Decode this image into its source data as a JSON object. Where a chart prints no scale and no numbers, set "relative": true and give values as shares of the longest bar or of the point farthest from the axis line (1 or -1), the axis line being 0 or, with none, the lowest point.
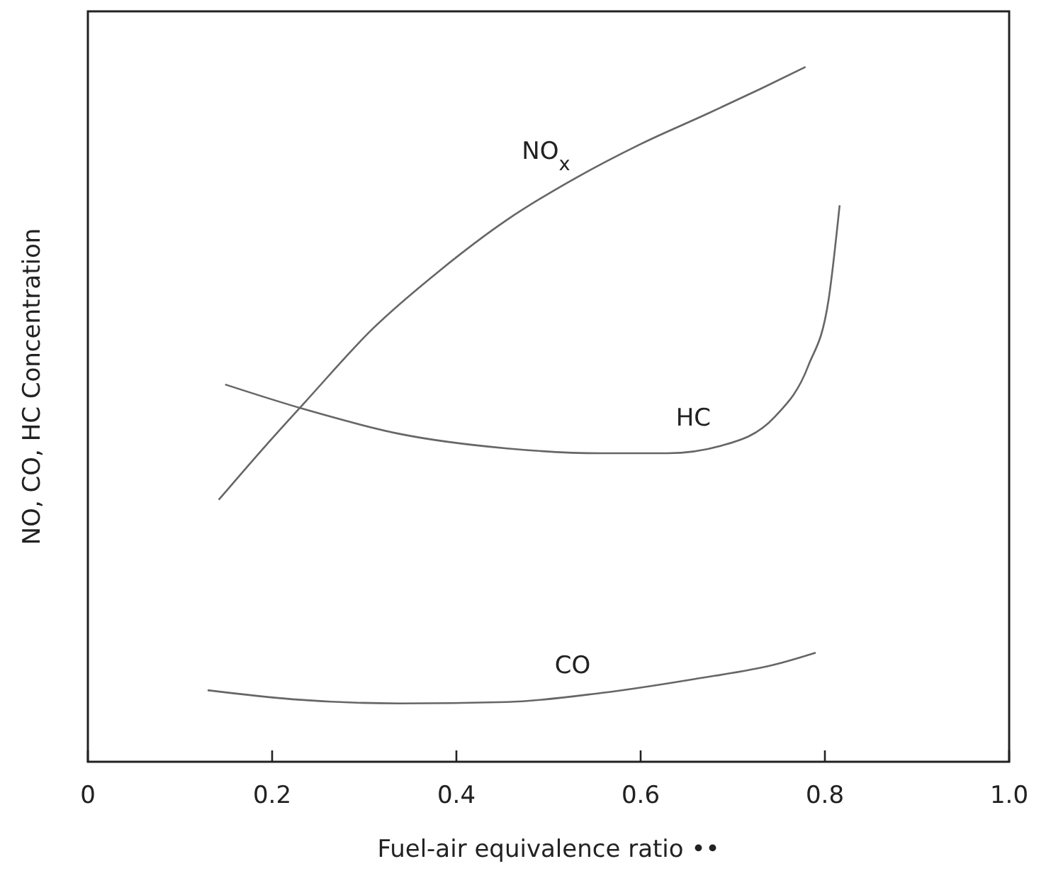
{
  "chart_data": {
    "type": "line",
    "relative": true,
    "xlabel": "Fuel-air equivalence ratio ••",
    "ylabel": "NO, CO, HC Concentration",
    "xlim": [
      0,
      1.0
    ],
    "xticks": [
      {
        "value": 0,
        "label": "0"
      },
      0.2,
      0.4,
      0.6,
      0.8,
      {
        "value": 1.0,
        "label": "1.0"
      }
    ],
    "grid": false,
    "marker": "none",
    "line_style": "solid",
    "tick_labels": "x",
    "series": [
      {
        "name": "NO$_{x}$",
        "color": "#666666",
        "x": [
          0.142,
          0.193,
          0.236,
          0.309,
          0.382,
          0.455,
          0.528,
          0.6,
          0.673,
          0.731,
          0.779
        ],
        "values": [
          0.377,
          0.455,
          0.518,
          0.623,
          0.707,
          0.78,
          0.839,
          0.889,
          0.933,
          0.969,
          1
        ]
      },
      {
        "name": "HC",
        "color": "#666666",
        "x": [
          0.149,
          0.236,
          0.338,
          0.455,
          0.557,
          0.629,
          0.688,
          0.746,
          0.782,
          0.804,
          0.816
        ],
        "values": [
          0.543,
          0.507,
          0.472,
          0.451,
          0.444,
          0.444,
          0.455,
          0.497,
          0.57,
          0.665,
          0.801
        ]
      },
      {
        "name": "CO",
        "color": "#666666",
        "x": [
          0.13,
          0.222,
          0.338,
          0.455,
          0.557,
          0.658,
          0.746,
          0.79
        ],
        "values": [
          0.103,
          0.09,
          0.084,
          0.086,
          0.099,
          0.119,
          0.14,
          0.157
        ]
      }
    ]
  }
}
